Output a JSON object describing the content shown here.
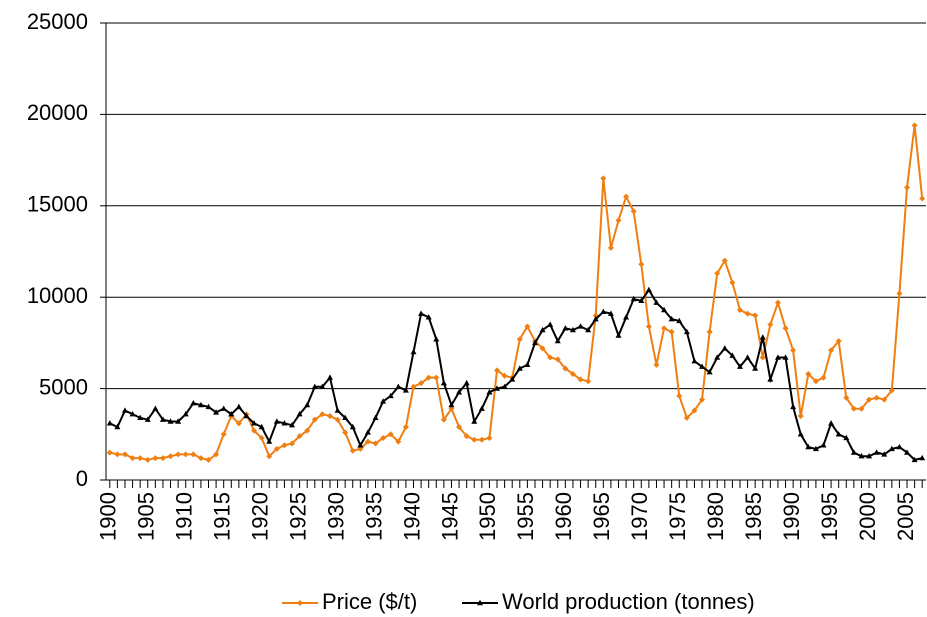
{
  "chart_data": {
    "type": "line",
    "x": [
      1900,
      1901,
      1902,
      1903,
      1904,
      1905,
      1906,
      1907,
      1908,
      1909,
      1910,
      1911,
      1912,
      1913,
      1914,
      1915,
      1916,
      1917,
      1918,
      1919,
      1920,
      1921,
      1922,
      1923,
      1924,
      1925,
      1926,
      1927,
      1928,
      1929,
      1930,
      1931,
      1932,
      1933,
      1934,
      1935,
      1936,
      1937,
      1938,
      1939,
      1940,
      1941,
      1942,
      1943,
      1944,
      1945,
      1946,
      1947,
      1948,
      1949,
      1950,
      1951,
      1952,
      1953,
      1954,
      1955,
      1956,
      1957,
      1958,
      1959,
      1960,
      1961,
      1962,
      1963,
      1964,
      1965,
      1966,
      1967,
      1968,
      1969,
      1970,
      1971,
      1972,
      1973,
      1974,
      1975,
      1976,
      1977,
      1978,
      1979,
      1980,
      1981,
      1982,
      1983,
      1984,
      1985,
      1986,
      1987,
      1988,
      1989,
      1990,
      1991,
      1992,
      1993,
      1994,
      1995,
      1996,
      1997,
      1998,
      1999,
      2000,
      2001,
      2002,
      2003,
      2004,
      2005,
      2006,
      2007
    ],
    "series": [
      {
        "name": "Price ($/t)",
        "color": "#f07f12",
        "marker": "diamond",
        "values": [
          1500,
          1400,
          1400,
          1200,
          1200,
          1100,
          1200,
          1200,
          1300,
          1400,
          1400,
          1400,
          1200,
          1100,
          1400,
          2500,
          3500,
          3100,
          3600,
          2700,
          2300,
          1300,
          1700,
          1900,
          2000,
          2400,
          2700,
          3300,
          3600,
          3500,
          3300,
          2600,
          1600,
          1700,
          2100,
          2000,
          2300,
          2500,
          2100,
          2900,
          5100,
          5300,
          5600,
          5600,
          3300,
          3900,
          2900,
          2400,
          2200,
          2200,
          2300,
          6000,
          5700,
          5600,
          7700,
          8400,
          7600,
          7200,
          6700,
          6600,
          6100,
          5800,
          5500,
          5400,
          9000,
          16500,
          12700,
          14200,
          15500,
          14700,
          11800,
          8400,
          6300,
          8300,
          8100,
          4600,
          3400,
          3800,
          4400,
          8100,
          11300,
          12000,
          10800,
          9300,
          9100,
          9000,
          6700,
          8500,
          9700,
          8300,
          7100,
          3500,
          5800,
          5400,
          5600,
          7100,
          7600,
          4500,
          3900,
          3900,
          4400,
          4500,
          4400,
          4900,
          10200,
          16000,
          19400,
          15400
        ]
      },
      {
        "name": "World production (tonnes)",
        "color": "#000000",
        "marker": "triangle",
        "values": [
          3100,
          2900,
          3800,
          3600,
          3400,
          3300,
          3900,
          3300,
          3200,
          3200,
          3600,
          4200,
          4100,
          4000,
          3700,
          3900,
          3600,
          4000,
          3500,
          3100,
          2900,
          2100,
          3200,
          3100,
          3000,
          3600,
          4100,
          5100,
          5100,
          5600,
          3800,
          3400,
          2900,
          1900,
          2600,
          3400,
          4300,
          4600,
          5100,
          4900,
          7000,
          9100,
          8900,
          7700,
          5300,
          4100,
          4800,
          5300,
          3200,
          3900,
          4800,
          5000,
          5100,
          5500,
          6100,
          6300,
          7500,
          8200,
          8500,
          7600,
          8300,
          8200,
          8400,
          8200,
          8800,
          9200,
          9100,
          7900,
          8900,
          9900,
          9800,
          10400,
          9700,
          9300,
          8800,
          8700,
          8100,
          6500,
          6200,
          5900,
          6700,
          7200,
          6800,
          6200,
          6700,
          6100,
          7800,
          5500,
          6700,
          6700,
          4000,
          2500,
          1800,
          1700,
          1900,
          3100,
          2500,
          2300,
          1500,
          1300,
          1300,
          1500,
          1400,
          1700,
          1800,
          1500,
          1100,
          1200
        ]
      }
    ],
    "xlim": [
      1899.5,
      2007.5
    ],
    "xticks": [
      1900,
      1905,
      1910,
      1915,
      1920,
      1925,
      1930,
      1935,
      1940,
      1945,
      1950,
      1955,
      1960,
      1965,
      1970,
      1975,
      1980,
      1985,
      1990,
      1995,
      2000,
      2005
    ],
    "ylim": [
      0,
      25000
    ],
    "yticks": [
      0,
      5000,
      10000,
      15000,
      20000,
      25000
    ],
    "grid": true,
    "legend": "bottom"
  }
}
